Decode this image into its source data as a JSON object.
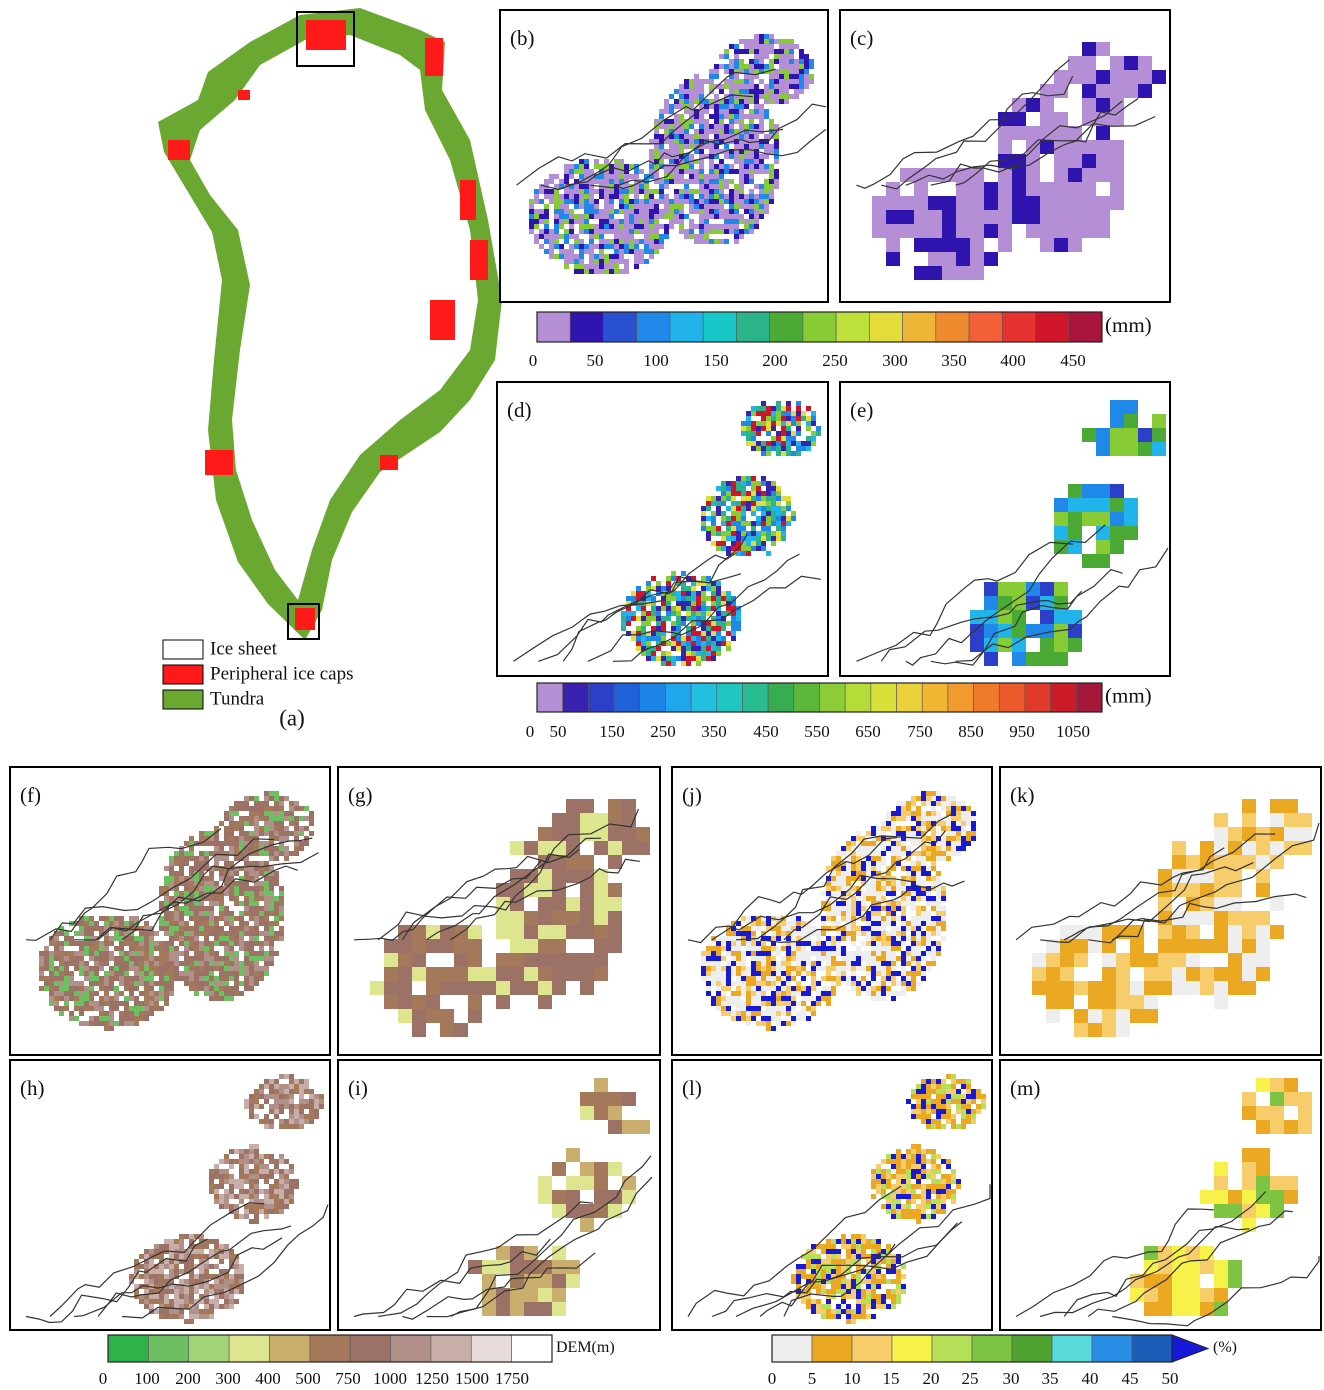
{
  "figure": {
    "panels": [
      {
        "label": "(b)"
      },
      {
        "label": "(c)"
      },
      {
        "label": "(d)"
      },
      {
        "label": "(e)"
      },
      {
        "label": "(f)"
      },
      {
        "label": "(g)"
      },
      {
        "label": "(h)"
      },
      {
        "label": "(i)"
      },
      {
        "label": "(j)"
      },
      {
        "label": "(k)"
      },
      {
        "label": "(l)"
      },
      {
        "label": "(m)"
      }
    ],
    "map_label": "(a)",
    "legend": [
      {
        "label": "Ice sheet",
        "color": "#ffffff"
      },
      {
        "label": "Peripheral ice caps",
        "color": "#ff1a1a"
      },
      {
        "label": "Tundra",
        "color": "#6aa832"
      }
    ],
    "colorbars": [
      {
        "unit": "(mm)",
        "ticks": [
          0,
          50,
          100,
          150,
          200,
          250,
          300,
          350,
          400,
          450
        ],
        "colors": [
          "#b48fd6",
          "#3014b0",
          "#2850d0",
          "#1f88e8",
          "#20b4ea",
          "#18c8c8",
          "#2bb38a",
          "#4aaa35",
          "#88cc35",
          "#bde03a",
          "#e3dc3a",
          "#efb534",
          "#f08a2f",
          "#f2603a",
          "#e83232",
          "#d0142a",
          "#a8143c"
        ]
      },
      {
        "unit": "(mm)",
        "ticks": [
          0,
          50,
          150,
          250,
          350,
          450,
          550,
          650,
          750,
          850,
          950,
          1050
        ],
        "colors": [
          "#b48fd6",
          "#3a22b0",
          "#2c3fc8",
          "#2060d8",
          "#1c84e6",
          "#20a6ec",
          "#22c0e0",
          "#1ec8c0",
          "#28bc90",
          "#38ac50",
          "#5cb83a",
          "#8ccc38",
          "#b6dc3a",
          "#d8e03a",
          "#ecd23a",
          "#f0b634",
          "#f09a30",
          "#f07a2c",
          "#ec5a2c",
          "#e23a2a",
          "#cc1a28",
          "#a4183a"
        ]
      },
      {
        "unit": "DEM(m)",
        "ticks": [
          0,
          100,
          200,
          300,
          400,
          500,
          750,
          1000,
          1250,
          1500,
          1750
        ],
        "colors": [
          "#2db34a",
          "#6cc061",
          "#a4d47a",
          "#dde58f",
          "#c9ae6d",
          "#a4785a",
          "#9c7266",
          "#b19089",
          "#c8ada8",
          "#e8dcda",
          "#ffffff"
        ]
      },
      {
        "unit": "(%)",
        "ticks": [
          0,
          5,
          10,
          15,
          20,
          25,
          30,
          35,
          40,
          45,
          50
        ],
        "colors": [
          "#eeeeee",
          "#eaa823",
          "#f7cc6a",
          "#f7f24a",
          "#b6e05a",
          "#7cc442",
          "#4ea230",
          "#58dada",
          "#2b8ee6",
          "#1a5eb8"
        ],
        "extend_color": "#1818d8"
      }
    ]
  }
}
